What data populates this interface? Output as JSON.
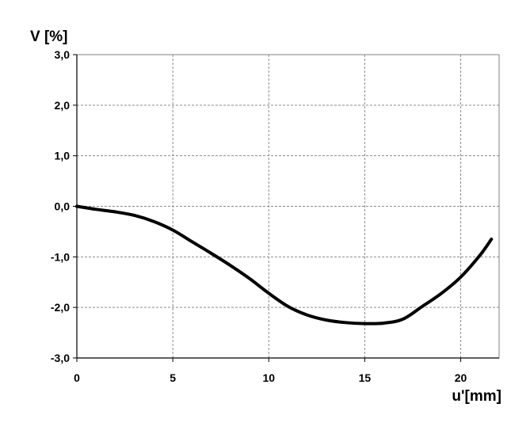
{
  "chart_data": {
    "type": "line",
    "ylabel": "V [%]",
    "xlabel": "u'[mm]",
    "xlim": [
      0,
      22
    ],
    "ylim": [
      -3,
      3
    ],
    "grid": true,
    "x_ticks": [
      {
        "value": 0,
        "label": "0"
      },
      {
        "value": 5,
        "label": "5"
      },
      {
        "value": 10,
        "label": "10"
      },
      {
        "value": 15,
        "label": "15"
      },
      {
        "value": 20,
        "label": "20"
      }
    ],
    "y_ticks": [
      {
        "value": 3,
        "label": "3,0"
      },
      {
        "value": 2,
        "label": "2,0"
      },
      {
        "value": 1,
        "label": "1,0"
      },
      {
        "value": 0,
        "label": "0,0"
      },
      {
        "value": -1,
        "label": "-1,0"
      },
      {
        "value": -2,
        "label": "-2,0"
      },
      {
        "value": -3,
        "label": "-3,0"
      }
    ],
    "series": [
      {
        "color": "#000000",
        "points": [
          [
            0,
            0.0
          ],
          [
            1,
            -0.06
          ],
          [
            2,
            -0.11
          ],
          [
            3,
            -0.18
          ],
          [
            4,
            -0.3
          ],
          [
            5,
            -0.47
          ],
          [
            6,
            -0.7
          ],
          [
            7,
            -0.93
          ],
          [
            8,
            -1.17
          ],
          [
            9,
            -1.43
          ],
          [
            10,
            -1.72
          ],
          [
            11,
            -1.98
          ],
          [
            12,
            -2.15
          ],
          [
            13,
            -2.25
          ],
          [
            14,
            -2.3
          ],
          [
            15,
            -2.32
          ],
          [
            16,
            -2.31
          ],
          [
            17,
            -2.23
          ],
          [
            18,
            -1.98
          ],
          [
            19,
            -1.72
          ],
          [
            20,
            -1.4
          ],
          [
            21,
            -0.97
          ],
          [
            21.6,
            -0.65
          ]
        ]
      }
    ]
  }
}
